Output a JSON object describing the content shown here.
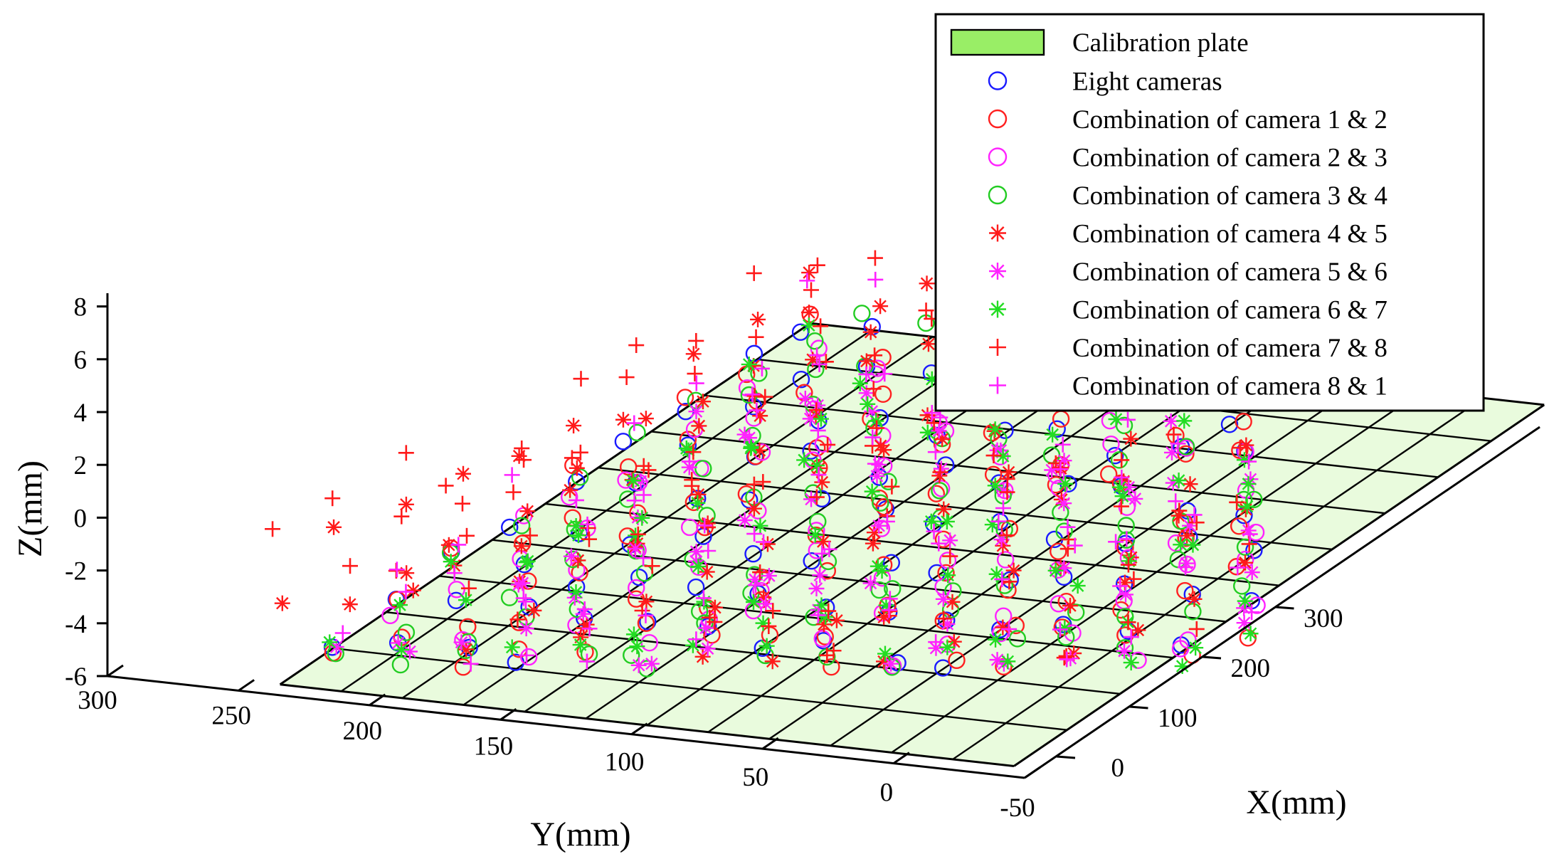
{
  "chart_data": {
    "type": "scatter3d",
    "xlabel": "X(mm)",
    "ylabel": "Y(mm)",
    "zlabel": "Z(mm)",
    "x_ticks": [
      0,
      100,
      200,
      300
    ],
    "y_ticks": [
      300,
      250,
      200,
      150,
      100,
      50,
      0,
      -50
    ],
    "z_ticks": [
      8,
      6,
      4,
      2,
      0,
      -2,
      -4,
      -6
    ],
    "xlim": [
      -40,
      380
    ],
    "ylim": [
      -50,
      300
    ],
    "zlim": [
      -6,
      8.5
    ],
    "grid": false,
    "legend_position": "top-right",
    "plate": {
      "name": "Calibration plate",
      "color": "#99ee66",
      "x_range": [
        0,
        360
      ],
      "y_range": [
        0,
        270
      ],
      "rows": 10,
      "cols": 12,
      "z": 0.5
    },
    "grid_points": {
      "rows": 10,
      "cols": 13
    },
    "series": [
      {
        "name": "Eight cameras",
        "marker": "circle",
        "color": "#1a1aff",
        "z_offset": 0.1,
        "spread": 0.4
      },
      {
        "name": "Combination of camera 1 & 2",
        "marker": "circle",
        "color": "#ff2020",
        "z_offset": -0.3,
        "spread": 0.9
      },
      {
        "name": "Combination of camera 2 & 3",
        "marker": "circle",
        "color": "#ff22ff",
        "z_offset": -0.6,
        "spread": 1.0
      },
      {
        "name": "Combination of camera 3 & 4",
        "marker": "circle",
        "color": "#22cc22",
        "z_offset": -0.2,
        "spread": 1.0
      },
      {
        "name": "Combination of camera 4 & 5",
        "marker": "asterisk",
        "color": "#ff1a1a",
        "z_offset": 1.2,
        "spread": 2.2
      },
      {
        "name": "Combination of camera 5 & 6",
        "marker": "asterisk",
        "color": "#ff22ff",
        "z_offset": -1.6,
        "spread": 1.6
      },
      {
        "name": "Combination of camera 6 & 7",
        "marker": "asterisk",
        "color": "#22dd22",
        "z_offset": -0.8,
        "spread": 1.2
      },
      {
        "name": "Combination of camera 7 & 8",
        "marker": "plus",
        "color": "#ff1a1a",
        "z_offset": 1.8,
        "spread": 2.8
      },
      {
        "name": "Combination of camera 8 & 1",
        "marker": "plus",
        "color": "#ff22ff",
        "z_offset": 0.4,
        "spread": 1.8
      }
    ]
  }
}
